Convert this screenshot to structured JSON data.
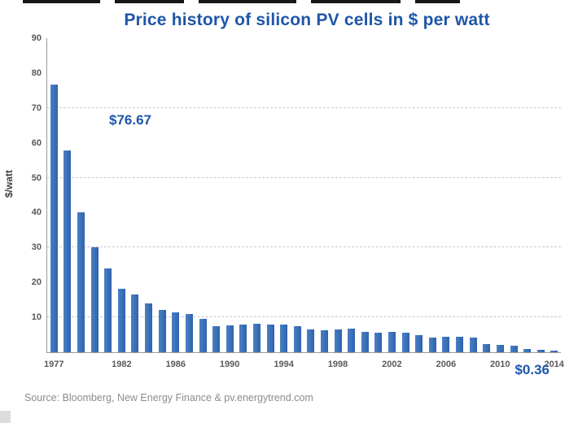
{
  "page": {
    "source_note": "Source: Bloomberg, New Energy Finance & pv.energytrend.com"
  },
  "chart_data": {
    "type": "bar",
    "title": "Price history of silicon PV cells in $ per watt",
    "xlabel": "",
    "ylabel": "$/watt",
    "ylim": [
      0,
      90
    ],
    "yticks": [
      10,
      20,
      30,
      40,
      50,
      60,
      70,
      80,
      90
    ],
    "gridlines": [
      10,
      30,
      50,
      70
    ],
    "grid_style": "dashed horizontal",
    "legend": "none",
    "bar_color": "#3c74bb",
    "accent_color": "#1e56a8",
    "categories": [
      1977,
      1978,
      1979,
      1980,
      1981,
      1982,
      1983,
      1984,
      1985,
      1986,
      1987,
      1988,
      1989,
      1990,
      1991,
      1992,
      1993,
      1994,
      1995,
      1996,
      1997,
      1998,
      1999,
      2000,
      2001,
      2002,
      2003,
      2004,
      2005,
      2006,
      2007,
      2008,
      2009,
      2010,
      2011,
      2012,
      2013,
      2014
    ],
    "values": [
      76.67,
      57.9,
      40.0,
      30.0,
      24.0,
      18.2,
      16.5,
      14.0,
      12.2,
      11.5,
      11.0,
      9.5,
      7.5,
      7.6,
      8.0,
      8.2,
      8.0,
      7.9,
      7.4,
      6.5,
      6.2,
      6.6,
      6.8,
      5.8,
      5.6,
      5.9,
      5.6,
      4.8,
      4.2,
      4.5,
      4.4,
      4.2,
      2.4,
      2.0,
      1.8,
      1.0,
      0.74,
      0.36
    ],
    "xticks": [
      1977,
      1982,
      1986,
      1990,
      1994,
      1998,
      2002,
      2006,
      2010,
      2014
    ],
    "annotations": [
      {
        "text": "$76.67",
        "year": 1977,
        "position": "top-left"
      },
      {
        "text": "$0.36",
        "year": 2014,
        "position": "bottom-right"
      }
    ]
  }
}
